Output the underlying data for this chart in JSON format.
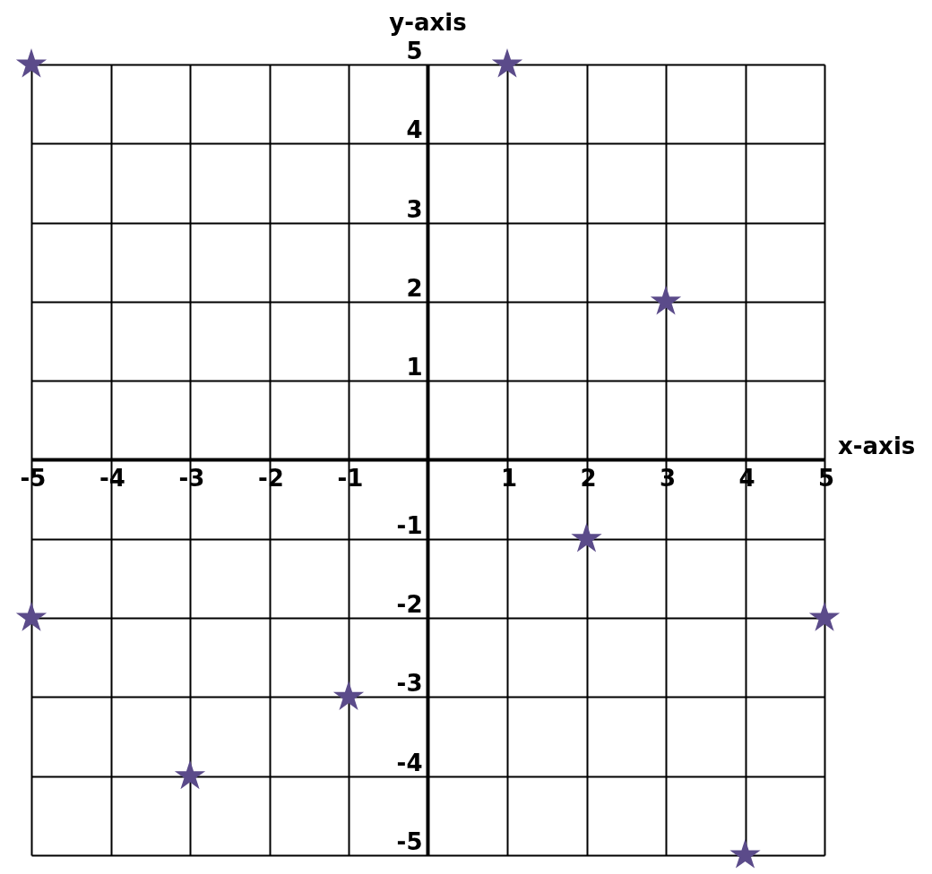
{
  "chart_data": {
    "type": "scatter",
    "xlabel": "x-axis",
    "ylabel": "y-axis",
    "x": [
      -5,
      1,
      3,
      2,
      5,
      -5,
      -1,
      -3,
      4
    ],
    "series": [
      {
        "color": "#5b4b8a",
        "values": [
          5,
          5,
          2,
          -1,
          -2,
          -2,
          -3,
          -4,
          -5
        ]
      }
    ],
    "xlim": [
      -5,
      5
    ],
    "ylim": [
      -5,
      5
    ],
    "xticks": [
      -5,
      -4,
      -3,
      -2,
      -1,
      1,
      2,
      3,
      4,
      5
    ],
    "yticks": [
      -5,
      -4,
      -3,
      -2,
      -1,
      1,
      2,
      3,
      4,
      5
    ],
    "grid": true,
    "marker": "star",
    "legend": false
  }
}
